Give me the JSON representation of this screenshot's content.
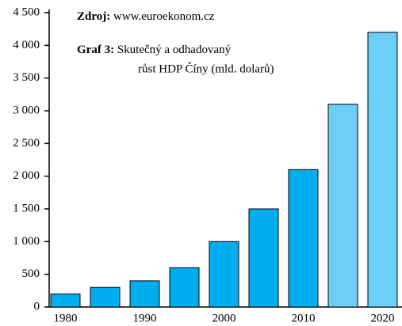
{
  "chart_data": {
    "type": "bar",
    "source_label": "Zdroj:",
    "source": "www.euroekonom.cz",
    "graph_label": "Graf 3:",
    "title": [
      "Skutečný a odhadovaný",
      "růst HDP Číny (mld. dolarů)"
    ],
    "categories": [
      "1980",
      null,
      "1990",
      null,
      "2000",
      null,
      "2010",
      null,
      "2020"
    ],
    "values": [
      200,
      300,
      400,
      600,
      1000,
      1500,
      2100,
      3100,
      4200
    ],
    "colors": [
      "#00aeef",
      "#00aeef",
      "#00aeef",
      "#00aeef",
      "#00aeef",
      "#00aeef",
      "#00aeef",
      "#6dcff6",
      "#6dcff6"
    ],
    "ylim": [
      0,
      4500
    ],
    "yticks": [
      0,
      500,
      {
        "value": 1000,
        "label": "1 000"
      },
      {
        "value": 1500,
        "label": "1 500"
      },
      {
        "value": 2000,
        "label": "2 000"
      },
      {
        "value": 2500,
        "label": "2 500"
      },
      {
        "value": 3000,
        "label": "3 000"
      },
      {
        "value": 3500,
        "label": "3 500"
      },
      {
        "value": 4000,
        "label": "4 000"
      },
      {
        "value": 4500,
        "label": "4 500"
      }
    ],
    "grid": false
  }
}
